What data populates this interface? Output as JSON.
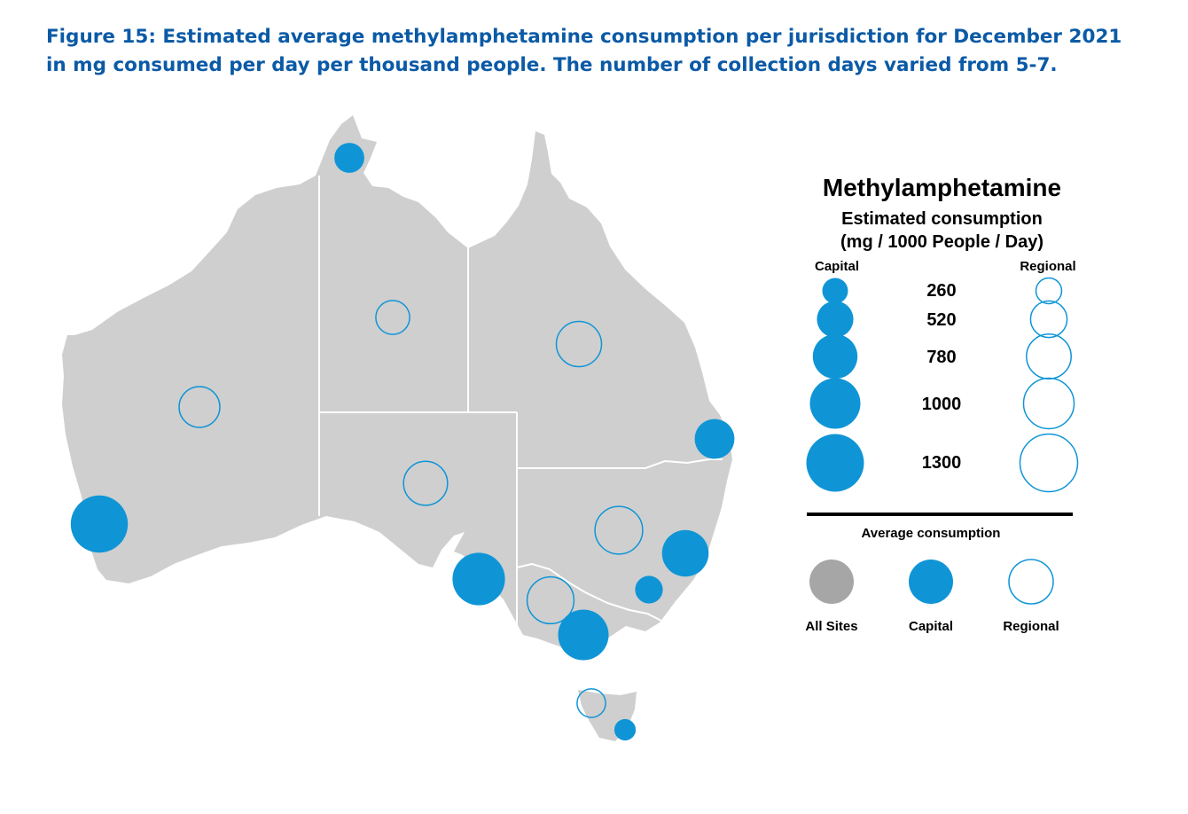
{
  "caption": {
    "line1": "Figure 15: Estimated average methylamphetamine consumption per jurisdiction for December 2021",
    "line2": "in mg consumed per day per thousand people. The number of collection days varied from 5-7."
  },
  "colors": {
    "land": "#cfcfcf",
    "border": "#ffffff",
    "capital": "#0f95d6",
    "regional_stroke": "#0f95d6",
    "all_sites": "#a6a6a6",
    "caption": "#0b5aa6"
  },
  "legend": {
    "title": "Methylamphetamine",
    "subtitle_line1": "Estimated consumption",
    "subtitle_line2": "(mg / 1000 People / Day)",
    "capital_header": "Capital",
    "regional_header": "Regional",
    "sizes": [
      "260",
      "520",
      "780",
      "1000",
      "1300"
    ],
    "average_header": "Average consumption",
    "average_items": [
      "All Sites",
      "Capital",
      "Regional"
    ]
  },
  "sites": [
    {
      "type": "capital",
      "place": "Darwin",
      "value": 350
    },
    {
      "type": "regional",
      "place": "Northern Territory",
      "value": 450
    },
    {
      "type": "regional",
      "place": "Queensland",
      "value": 800
    },
    {
      "type": "regional",
      "place": "Western Australia",
      "value": 650
    },
    {
      "type": "capital",
      "place": "Brisbane",
      "value": 620
    },
    {
      "type": "regional",
      "place": "South Australia",
      "value": 760
    },
    {
      "type": "capital",
      "place": "Perth",
      "value": 1280
    },
    {
      "type": "regional",
      "place": "New South Wales",
      "value": 890
    },
    {
      "type": "capital",
      "place": "Sydney",
      "value": 850
    },
    {
      "type": "capital",
      "place": "Adelaide",
      "value": 1080
    },
    {
      "type": "capital",
      "place": "Canberra",
      "value": 300
    },
    {
      "type": "regional",
      "place": "Victoria",
      "value": 860
    },
    {
      "type": "capital",
      "place": "Melbourne",
      "value": 1000
    },
    {
      "type": "regional",
      "place": "Tasmania",
      "value": 320
    },
    {
      "type": "capital",
      "place": "Hobart",
      "value": 180
    }
  ]
}
